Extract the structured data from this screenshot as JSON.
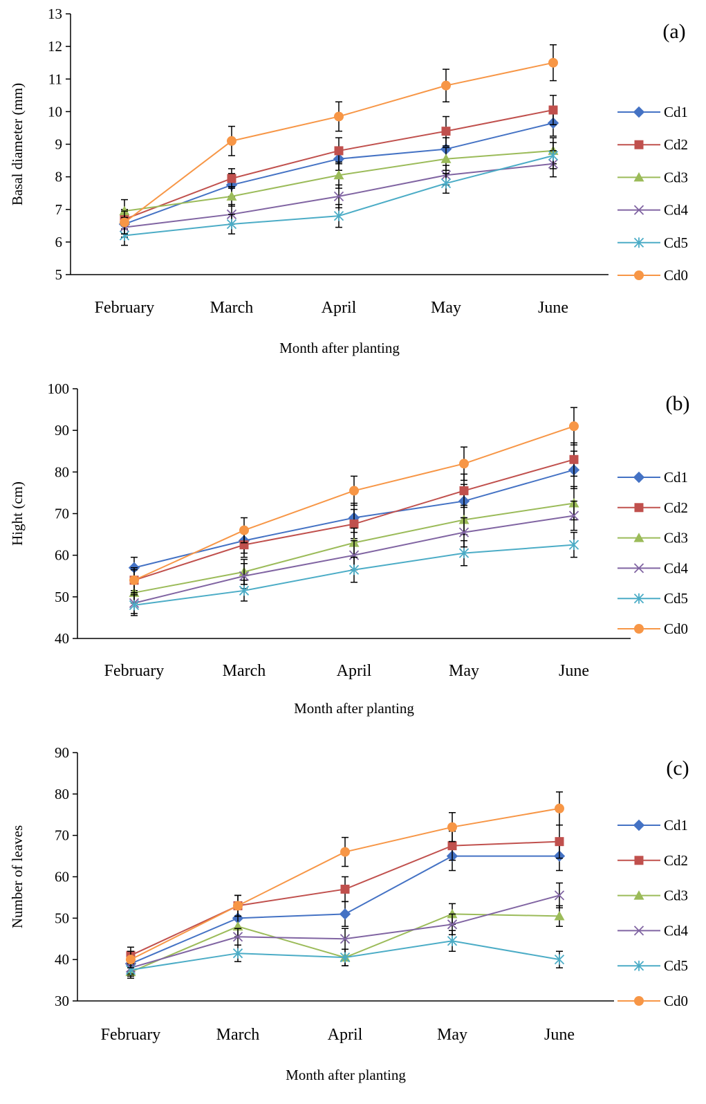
{
  "colors": {
    "Cd1": "#4472c4",
    "Cd2": "#c0504d",
    "Cd3": "#9bbb59",
    "Cd4": "#8064a2",
    "Cd5": "#4bacc6",
    "Cd0": "#f79646"
  },
  "chart_data": [
    {
      "type": "line",
      "panel_label": "(a)",
      "categories": [
        "February",
        "March",
        "April",
        "May",
        "June"
      ],
      "xlabel": "Month after planting",
      "ylabel": "Basal diameter (mm)",
      "ylim": [
        5,
        13
      ],
      "yticks": [
        "5",
        "6",
        "7",
        "8",
        "9",
        "10",
        "11",
        "12",
        "13"
      ],
      "legend_position": "right",
      "series": [
        {
          "name": "Cd1",
          "marker": "diamond",
          "values": [
            6.55,
            7.75,
            8.55,
            8.85,
            9.65
          ],
          "errors": [
            0.3,
            0.35,
            0.35,
            0.35,
            0.4
          ]
        },
        {
          "name": "Cd2",
          "marker": "square",
          "values": [
            6.7,
            7.95,
            8.8,
            9.4,
            10.05
          ],
          "errors": [
            0.3,
            0.3,
            0.4,
            0.45,
            0.45
          ]
        },
        {
          "name": "Cd3",
          "marker": "triangle",
          "values": [
            6.95,
            7.4,
            8.05,
            8.55,
            8.8
          ],
          "errors": [
            0.35,
            0.3,
            0.4,
            0.35,
            0.4
          ]
        },
        {
          "name": "Cd4",
          "marker": "x",
          "values": [
            6.45,
            6.85,
            7.4,
            8.05,
            8.4
          ],
          "errors": [
            0.3,
            0.3,
            0.35,
            0.3,
            0.4
          ]
        },
        {
          "name": "Cd5",
          "marker": "star",
          "values": [
            6.2,
            6.55,
            6.8,
            7.8,
            8.65
          ],
          "errors": [
            0.3,
            0.3,
            0.35,
            0.3,
            0.4
          ]
        },
        {
          "name": "Cd0",
          "marker": "circle",
          "values": [
            6.6,
            9.1,
            9.85,
            10.8,
            11.5
          ],
          "errors": [
            0.35,
            0.45,
            0.45,
            0.5,
            0.55
          ]
        }
      ]
    },
    {
      "type": "line",
      "panel_label": "(b)",
      "categories": [
        "February",
        "March",
        "April",
        "May",
        "June"
      ],
      "xlabel": "Month after planting",
      "ylabel": "Hight (cm)",
      "ylim": [
        40,
        100
      ],
      "yticks": [
        "40",
        "50",
        "60",
        "70",
        "80",
        "90",
        "100"
      ],
      "legend_position": "right",
      "series": [
        {
          "name": "Cd1",
          "marker": "diamond",
          "values": [
            57,
            63.5,
            69,
            73,
            80.5
          ],
          "errors": [
            2.5,
            3,
            3.5,
            4,
            4.5
          ]
        },
        {
          "name": "Cd2",
          "marker": "square",
          "values": [
            54,
            62.5,
            67.5,
            75.5,
            83
          ],
          "errors": [
            2.5,
            3,
            3.5,
            4,
            4
          ]
        },
        {
          "name": "Cd3",
          "marker": "triangle",
          "values": [
            51,
            56,
            63,
            68.5,
            72.5
          ],
          "errors": [
            2.5,
            3,
            3.5,
            3.5,
            4
          ]
        },
        {
          "name": "Cd4",
          "marker": "x",
          "values": [
            48.5,
            55,
            60,
            65.5,
            69.5
          ],
          "errors": [
            2.5,
            3,
            3.5,
            3.5,
            3.5
          ]
        },
        {
          "name": "Cd5",
          "marker": "star",
          "values": [
            48,
            51.5,
            56.5,
            60.5,
            62.5
          ],
          "errors": [
            2.5,
            2.5,
            3,
            3,
            3
          ]
        },
        {
          "name": "Cd0",
          "marker": "circle",
          "values": [
            54,
            66,
            75.5,
            82,
            91
          ],
          "errors": [
            3,
            3,
            3.5,
            4,
            4.5
          ]
        }
      ]
    },
    {
      "type": "line",
      "panel_label": "(c)",
      "categories": [
        "February",
        "March",
        "April",
        "May",
        "June"
      ],
      "xlabel": "Month after planting",
      "ylabel": "Number of leaves",
      "ylim": [
        30,
        90
      ],
      "yticks": [
        "30",
        "40",
        "50",
        "60",
        "70",
        "80",
        "90"
      ],
      "legend_position": "right",
      "series": [
        {
          "name": "Cd1",
          "marker": "diamond",
          "values": [
            39,
            50,
            51,
            65,
            65
          ],
          "errors": [
            2,
            2.5,
            3,
            3.5,
            3.5
          ]
        },
        {
          "name": "Cd2",
          "marker": "square",
          "values": [
            41,
            53,
            57,
            67.5,
            68.5
          ],
          "errors": [
            2,
            2.5,
            3,
            3.5,
            4
          ]
        },
        {
          "name": "Cd3",
          "marker": "triangle",
          "values": [
            37,
            48,
            40.5,
            51,
            50.5
          ],
          "errors": [
            1.5,
            2.5,
            2,
            2.5,
            2.5
          ]
        },
        {
          "name": "Cd4",
          "marker": "x",
          "values": [
            38,
            45.5,
            45,
            48.5,
            55.5
          ],
          "errors": [
            1.5,
            2,
            2.5,
            2.5,
            3
          ]
        },
        {
          "name": "Cd5",
          "marker": "star",
          "values": [
            37.5,
            41.5,
            40.5,
            44.5,
            40
          ],
          "errors": [
            1.5,
            2,
            2,
            2.5,
            2
          ]
        },
        {
          "name": "Cd0",
          "marker": "circle",
          "values": [
            40,
            53,
            66,
            72,
            76.5
          ],
          "errors": [
            2,
            2.5,
            3.5,
            3.5,
            4
          ]
        }
      ]
    }
  ]
}
